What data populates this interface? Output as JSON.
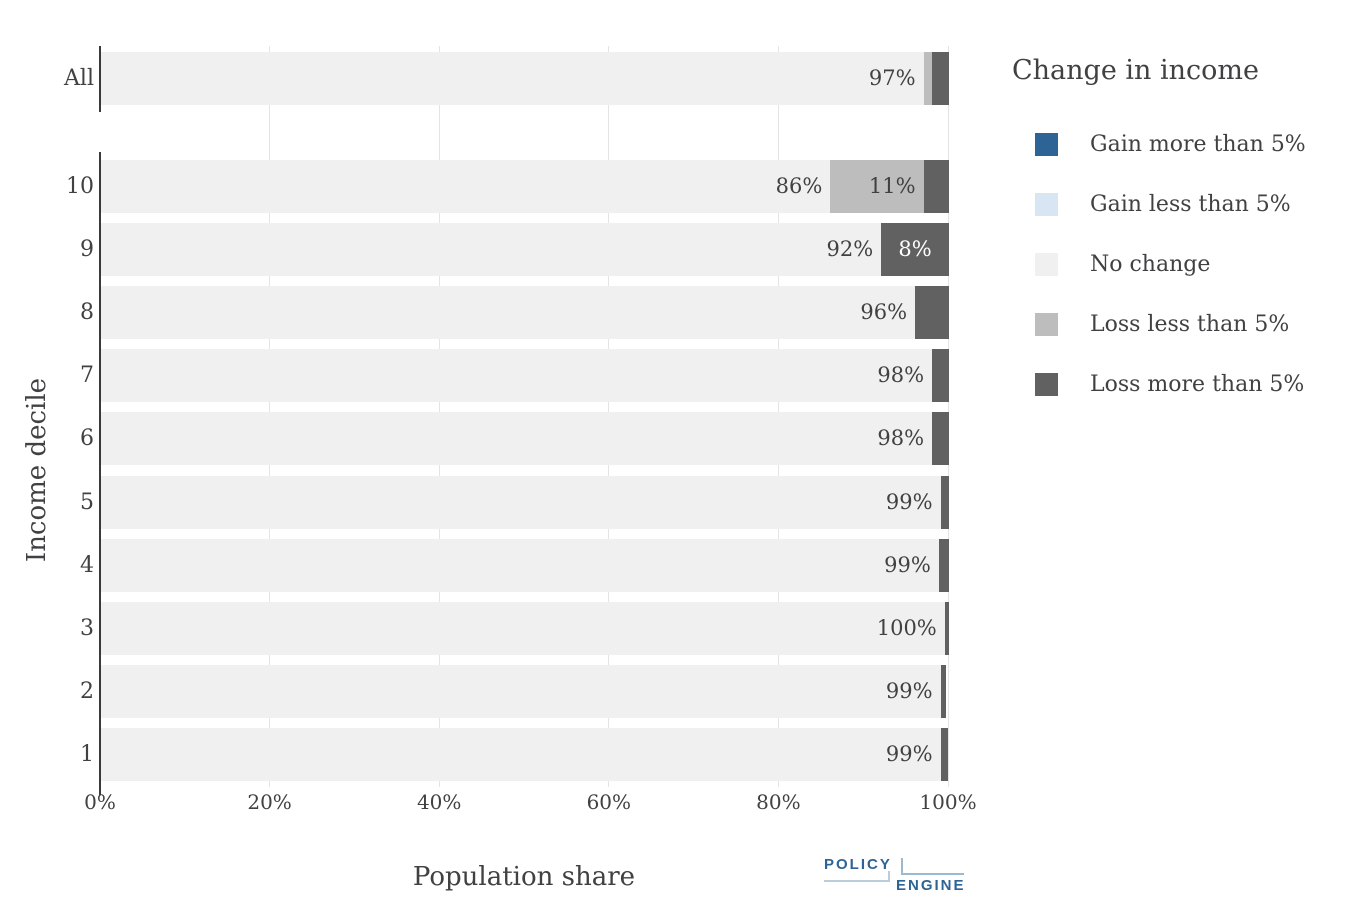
{
  "chart_data": {
    "type": "bar",
    "orientation": "horizontal",
    "stacked": true,
    "title": "",
    "xlabel": "Population share",
    "ylabel": "Income decile",
    "xlim": [
      0,
      100
    ],
    "grid": true,
    "legend_position": "right",
    "legend_title": "Change in income",
    "x_ticks": [
      {
        "value": 0,
        "label": "0%"
      },
      {
        "value": 20,
        "label": "20%"
      },
      {
        "value": 40,
        "label": "40%"
      },
      {
        "value": 60,
        "label": "60%"
      },
      {
        "value": 80,
        "label": "80%"
      },
      {
        "value": 100,
        "label": "100%"
      }
    ],
    "series_meta": [
      {
        "key": "gain_more_5",
        "name": "Gain more than 5%",
        "color": "#2C6496"
      },
      {
        "key": "gain_less_5",
        "name": "Gain less than 5%",
        "color": "#D8E6F3"
      },
      {
        "key": "no_change",
        "name": "No change",
        "color": "#F0F0F0"
      },
      {
        "key": "loss_less_5",
        "name": "Loss less than 5%",
        "color": "#BDBDBD"
      },
      {
        "key": "loss_more_5",
        "name": "Loss more than 5%",
        "color": "#616161"
      }
    ],
    "categories": [
      "All",
      "10",
      "9",
      "8",
      "7",
      "6",
      "5",
      "4",
      "3",
      "2",
      "1"
    ],
    "rows": [
      {
        "category": "All",
        "segments": [
          {
            "key": "no_change",
            "value": 97,
            "label": "97%"
          },
          {
            "key": "loss_less_5",
            "value": 1,
            "label": ""
          },
          {
            "key": "loss_more_5",
            "value": 2,
            "label": ""
          }
        ]
      },
      {
        "category": "10",
        "segments": [
          {
            "key": "no_change",
            "value": 86,
            "label": "86%"
          },
          {
            "key": "loss_less_5",
            "value": 11,
            "label": "11%"
          },
          {
            "key": "loss_more_5",
            "value": 3,
            "label": ""
          }
        ]
      },
      {
        "category": "9",
        "segments": [
          {
            "key": "no_change",
            "value": 92,
            "label": "92%"
          },
          {
            "key": "loss_more_5",
            "value": 8,
            "label": "8%"
          }
        ]
      },
      {
        "category": "8",
        "segments": [
          {
            "key": "no_change",
            "value": 96,
            "label": "96%"
          },
          {
            "key": "loss_more_5",
            "value": 4,
            "label": ""
          }
        ]
      },
      {
        "category": "7",
        "segments": [
          {
            "key": "no_change",
            "value": 98,
            "label": "98%"
          },
          {
            "key": "loss_more_5",
            "value": 2,
            "label": ""
          }
        ]
      },
      {
        "category": "6",
        "segments": [
          {
            "key": "no_change",
            "value": 98,
            "label": "98%"
          },
          {
            "key": "loss_more_5",
            "value": 2,
            "label": ""
          }
        ]
      },
      {
        "category": "5",
        "segments": [
          {
            "key": "no_change",
            "value": 99,
            "label": "99%"
          },
          {
            "key": "loss_more_5",
            "value": 1,
            "label": ""
          }
        ]
      },
      {
        "category": "4",
        "segments": [
          {
            "key": "no_change",
            "value": 98.8,
            "label": "99%"
          },
          {
            "key": "loss_more_5",
            "value": 1.2,
            "label": ""
          }
        ]
      },
      {
        "category": "3",
        "segments": [
          {
            "key": "no_change",
            "value": 99.5,
            "label": "100%"
          },
          {
            "key": "loss_more_5",
            "value": 0.5,
            "label": ""
          }
        ]
      },
      {
        "category": "2",
        "segments": [
          {
            "key": "no_change",
            "value": 99,
            "label": "99%"
          },
          {
            "key": "loss_more_5",
            "value": 0.7,
            "label": ""
          }
        ]
      },
      {
        "category": "1",
        "segments": [
          {
            "key": "no_change",
            "value": 99,
            "label": "99%"
          },
          {
            "key": "loss_more_5",
            "value": 0.9,
            "label": ""
          }
        ]
      }
    ]
  },
  "branding": {
    "logo_top": "POLICY",
    "logo_bottom": "ENGINE"
  }
}
